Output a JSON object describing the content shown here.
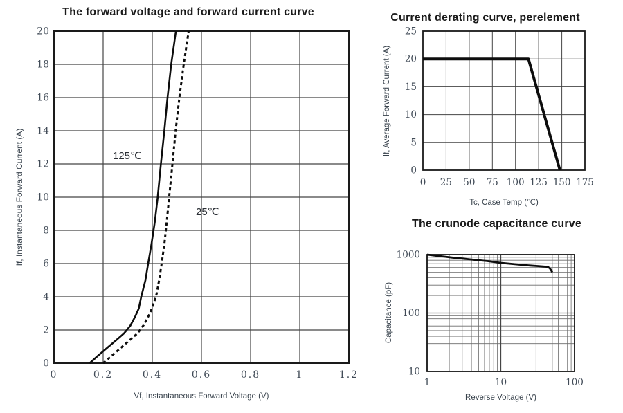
{
  "chart_data": [
    {
      "type": "line",
      "title": "The forward voltage and forward current curve",
      "xlabel": "Vf, Instantaneous Forward Voltage (V)",
      "ylabel": "If, Instantaneous Forward Current (A)",
      "xscale": "linear",
      "yscale": "linear",
      "xlim": [
        0,
        1.2
      ],
      "ylim": [
        0,
        20
      ],
      "xticks": [
        0,
        0.2,
        0.4,
        0.6,
        0.8,
        1,
        1.2
      ],
      "xtick_labels": [
        "0",
        "0.2",
        "0.4",
        "0.6",
        "0.8",
        "1",
        "1.2"
      ],
      "yticks": [
        0,
        2,
        4,
        6,
        8,
        10,
        12,
        14,
        16,
        18,
        20
      ],
      "grid": true,
      "legend_position": "inline-annotations",
      "series": [
        {
          "name": "125℃",
          "line": "solid",
          "width": 2.6,
          "points": [
            [
              0.145,
              0
            ],
            [
              0.175,
              0.4
            ],
            [
              0.21,
              0.85
            ],
            [
              0.25,
              1.35
            ],
            [
              0.285,
              1.8
            ],
            [
              0.31,
              2.25
            ],
            [
              0.33,
              2.8
            ],
            [
              0.345,
              3.3
            ],
            [
              0.355,
              4.0
            ],
            [
              0.372,
              5.0
            ],
            [
              0.383,
              6.0
            ],
            [
              0.397,
              7.2
            ],
            [
              0.41,
              8.5
            ],
            [
              0.422,
              10
            ],
            [
              0.435,
              12
            ],
            [
              0.449,
              14
            ],
            [
              0.462,
              16
            ],
            [
              0.477,
              18
            ],
            [
              0.496,
              20
            ]
          ]
        },
        {
          "name": "25℃",
          "line": "dashed",
          "width": 3,
          "points": [
            [
              0.2,
              0
            ],
            [
              0.235,
              0.45
            ],
            [
              0.27,
              0.9
            ],
            [
              0.305,
              1.35
            ],
            [
              0.34,
              1.8
            ],
            [
              0.365,
              2.3
            ],
            [
              0.39,
              3.0
            ],
            [
              0.406,
              3.6
            ],
            [
              0.418,
              4.2
            ],
            [
              0.43,
              5.2
            ],
            [
              0.44,
              6.2
            ],
            [
              0.45,
              7.3
            ],
            [
              0.46,
              8.7
            ],
            [
              0.47,
              10.2
            ],
            [
              0.482,
              12
            ],
            [
              0.495,
              14
            ],
            [
              0.51,
              16
            ],
            [
              0.528,
              18
            ],
            [
              0.548,
              20
            ]
          ]
        }
      ]
    },
    {
      "type": "line",
      "title": "Current derating curve, perelement",
      "xlabel": "Tc, Case Temp (℃)",
      "ylabel": "If, Average Forward Current (A)",
      "xscale": "linear",
      "yscale": "linear",
      "xlim": [
        0,
        175
      ],
      "ylim": [
        0,
        25
      ],
      "xticks": [
        0,
        25,
        50,
        75,
        100,
        125,
        150,
        175
      ],
      "xtick_labels": [
        "0",
        "25",
        "50",
        "75",
        "100",
        "125",
        "150",
        "175"
      ],
      "yticks": [
        0,
        5,
        10,
        15,
        20,
        25
      ],
      "grid": true,
      "series": [
        {
          "name": "derating",
          "line": "solid",
          "width": 4,
          "points": [
            [
              0,
              20
            ],
            [
              114,
              20
            ],
            [
              148,
              0
            ]
          ]
        }
      ]
    },
    {
      "type": "line",
      "title": "The crunode capacitance curve",
      "xlabel": "Reverse Voltage (V)",
      "ylabel": "Capacitance (pF)",
      "xscale": "log",
      "yscale": "log",
      "xlim": [
        1,
        100
      ],
      "ylim": [
        10,
        1000
      ],
      "xticks": [
        1,
        10,
        100
      ],
      "xtick_labels": [
        "1",
        "10",
        "100"
      ],
      "yticks": [
        10,
        100,
        1000
      ],
      "grid": true,
      "grid_minor": true,
      "series": [
        {
          "name": "capacitance",
          "line": "solid",
          "width": 2.8,
          "points": [
            [
              1,
              1000
            ],
            [
              1.3,
              960
            ],
            [
              1.7,
              925
            ],
            [
              2.2,
              890
            ],
            [
              3,
              855
            ],
            [
              4,
              825
            ],
            [
              5,
              800
            ],
            [
              6.5,
              775
            ],
            [
              8,
              750
            ],
            [
              10,
              722
            ],
            [
              13,
              700
            ],
            [
              16,
              682
            ],
            [
              20,
              665
            ],
            [
              25,
              650
            ],
            [
              30,
              640
            ],
            [
              36,
              630
            ],
            [
              41,
              620
            ],
            [
              44,
              610
            ],
            [
              46,
              585
            ],
            [
              48,
              540
            ],
            [
              50,
              498
            ]
          ]
        }
      ]
    }
  ],
  "colors": {
    "background": "#ffffff",
    "curve": "#0d0d0d",
    "grid": "#454545",
    "grid_minor": "#6b6b6b",
    "border": "#1a1a1a",
    "tick_text": "#414b57",
    "title_text": "#1a1a1a",
    "axis_text": "#38424c"
  }
}
